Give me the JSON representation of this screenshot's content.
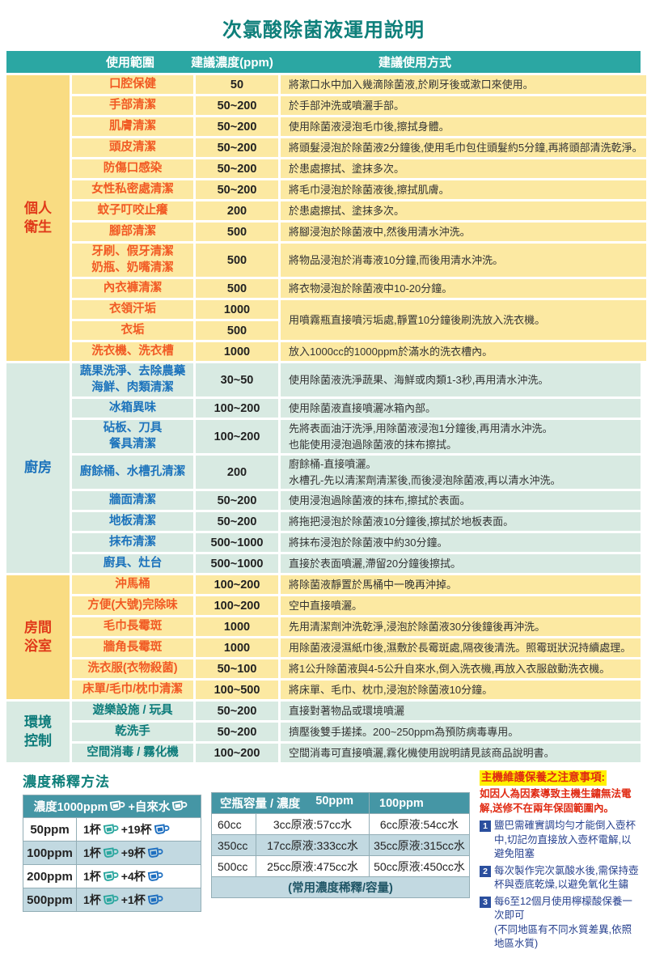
{
  "title": "次氯酸除菌液運用說明",
  "colors": {
    "title_teal": "#0e7f7a",
    "header_teal": "#2ba7a3",
    "yellow_category_bg": "#f9dc82",
    "yellow_cell_bg": "#fce9a2",
    "red_category_text": "#e03a1a",
    "orange_label_text": "#f15a24",
    "blue_label_text": "#1c73bc",
    "teal_label_text": "#0c7b7a",
    "green_cell_bg": "#d8eae2",
    "bottom_header_bg": "#4596a5",
    "alt_row_bg": "#c2d9e1",
    "note_red": "#e02a12",
    "note_navy": "#27418f",
    "badge_blue": "#2b4f9e",
    "highlight_yellow": "#fff100",
    "original_cup_teal": "#2ba79f",
    "water_cup_blue": "#1e6fc0"
  },
  "main_table": {
    "headers": {
      "scope": "使用範圍",
      "ppm": "建議濃度(ppm)",
      "method": "建議使用方式"
    },
    "sections": [
      {
        "category_lines": [
          "個人",
          "衛生"
        ],
        "theme": "theme-yellow",
        "rows": [
          {
            "scope": [
              "口腔保健"
            ],
            "ppm": "50",
            "method": [
              "將漱口水中加入幾滴除菌液,於刷牙後或漱口來使用。"
            ]
          },
          {
            "scope": [
              "手部清潔"
            ],
            "ppm": "50~200",
            "method": [
              "於手部沖洗或噴灑手部。"
            ]
          },
          {
            "scope": [
              "肌膚清潔"
            ],
            "ppm": "50~200",
            "method": [
              "使用除菌液浸泡毛巾後,擦拭身體。"
            ]
          },
          {
            "scope": [
              "頭皮清潔"
            ],
            "ppm": "50~200",
            "method": [
              "將頭髮浸泡於除菌液2分鐘後,使用毛巾包住頭髮約5分鐘,再將頭部清洗乾淨。"
            ]
          },
          {
            "scope": [
              "防傷口感染"
            ],
            "ppm": "50~200",
            "method": [
              "於患處擦拭、塗抹多次。"
            ]
          },
          {
            "scope": [
              "女性私密處清潔"
            ],
            "ppm": "50~200",
            "method": [
              "將毛巾浸泡於除菌液後,擦拭肌膚。"
            ]
          },
          {
            "scope": [
              "蚊子叮咬止癢"
            ],
            "ppm": "200",
            "method": [
              "於患處擦拭、塗抹多次。"
            ]
          },
          {
            "scope": [
              "腳部清潔"
            ],
            "ppm": "500",
            "method": [
              "將腳浸泡於除菌液中,然後用清水沖洗。"
            ]
          },
          {
            "scope": [
              "牙刷、假牙清潔",
              "奶瓶、奶嘴清潔"
            ],
            "ppm": "500",
            "method": [
              "將物品浸泡於消毒液10分鐘,而後用清水沖洗。"
            ]
          },
          {
            "scope": [
              "內衣褲清潔"
            ],
            "ppm": "500",
            "method": [
              "將衣物浸泡於除菌液中10-20分鐘。"
            ]
          },
          {
            "scope": [
              "衣領汗垢"
            ],
            "ppm": "1000",
            "method": [
              "用噴霧瓶直接噴污垢處,靜置10分鐘後刷洗放入洗衣機。"
            ],
            "method_rowspan": 2
          },
          {
            "scope": [
              "衣垢"
            ],
            "ppm": "500",
            "method": null
          },
          {
            "scope": [
              "洗衣機、洗衣槽"
            ],
            "ppm": "1000",
            "method": [
              "放入1000cc的1000ppm於滿水的洗衣槽內。"
            ]
          }
        ]
      },
      {
        "category_lines": [
          "廚房"
        ],
        "theme": "theme-blue",
        "rows": [
          {
            "scope": [
              "蔬果洗淨、去除農藥",
              "海鮮、肉類清潔"
            ],
            "ppm": "30~50",
            "method": [
              "使用除菌液洗淨蔬果、海鮮或肉類1-3秒,再用清水沖洗。"
            ]
          },
          {
            "scope": [
              "冰箱異味"
            ],
            "ppm": "100~200",
            "method": [
              "使用除菌液直接噴灑冰箱內部。"
            ]
          },
          {
            "scope": [
              "砧板、刀具",
              "餐具清潔"
            ],
            "ppm": "100~200",
            "method": [
              "先將表面油汙洗淨,用除菌液浸泡1分鐘後,再用清水沖洗。",
              "也能使用浸泡過除菌液的抹布擦拭。"
            ]
          },
          {
            "scope": [
              "廚餘桶、水槽孔清潔"
            ],
            "ppm": "200",
            "method": [
              "廚餘桶-直接噴灑。",
              "水槽孔-先以清潔劑清潔後,而後浸泡除菌液,再以清水沖洗。"
            ]
          },
          {
            "scope": [
              "牆面清潔"
            ],
            "ppm": "50~200",
            "method": [
              "使用浸泡過除菌液的抹布,擦拭於表面。"
            ]
          },
          {
            "scope": [
              "地板清潔"
            ],
            "ppm": "50~200",
            "method": [
              "將拖把浸泡於除菌液10分鐘後,擦拭於地板表面。"
            ]
          },
          {
            "scope": [
              "抹布清潔"
            ],
            "ppm": "500~1000",
            "method": [
              "將抹布浸泡於除菌液中約30分鐘。"
            ]
          },
          {
            "scope": [
              "廚具、灶台"
            ],
            "ppm": "500~1000",
            "method": [
              "直接於表面噴灑,滯留20分鐘後擦拭。"
            ]
          }
        ]
      },
      {
        "category_lines": [
          "房間",
          "浴室"
        ],
        "theme": "theme-yellow",
        "rows": [
          {
            "scope": [
              "沖馬桶"
            ],
            "ppm": "100~200",
            "method": [
              "將除菌液靜置於馬桶中一晚再沖掉。"
            ]
          },
          {
            "scope": [
              "方便(大號)完除味"
            ],
            "ppm": "100~200",
            "method": [
              "空中直接噴灑。"
            ]
          },
          {
            "scope": [
              "毛巾長霉斑"
            ],
            "ppm": "1000",
            "method": [
              "先用清潔劑沖洗乾淨,浸泡於除菌液30分後鐘後再沖洗。"
            ]
          },
          {
            "scope": [
              "牆角長霉斑"
            ],
            "ppm": "1000",
            "method": [
              "用除菌液浸濕紙巾後,濕敷於長霉斑處,隔夜後清洗。照霉斑狀況持續處理。"
            ]
          },
          {
            "scope": [
              "洗衣服(衣物殺菌)"
            ],
            "ppm": "50~100",
            "method": [
              "將1公升除菌液與4-5公升自來水,倒入洗衣機,再放入衣服啟動洗衣機。"
            ]
          },
          {
            "scope": [
              "床單/毛巾/枕巾清潔"
            ],
            "ppm": "100~500",
            "method": [
              "將床單、毛巾、枕巾,浸泡於除菌液10分鐘。"
            ]
          }
        ]
      },
      {
        "category_lines": [
          "環境",
          "控制"
        ],
        "theme": "theme-teal",
        "rows": [
          {
            "scope": [
              "遊樂設施 / 玩具"
            ],
            "ppm": "50~200",
            "method": [
              "直接對著物品或環境噴灑"
            ]
          },
          {
            "scope": [
              "乾洗手"
            ],
            "ppm": "50~200",
            "method": [
              "擠壓後雙手搓揉。200~250ppm為預防病毒專用。"
            ]
          },
          {
            "scope": [
              "空間消毒 / 霧化機"
            ],
            "ppm": "100~200",
            "method": [
              "空間消毒可直接噴灑,霧化機使用說明請見該商品說明書。"
            ]
          }
        ]
      }
    ]
  },
  "dilution": {
    "heading": "濃度稀釋方法",
    "header_original": "濃度1000ppm",
    "header_water": "+自來水",
    "original_icon": "cup-teal",
    "water_icon": "cup-blue",
    "rows": [
      {
        "target": "50ppm",
        "original": "1杯",
        "water": "+19杯"
      },
      {
        "target": "100ppm",
        "original": "1杯",
        "water": "+9杯"
      },
      {
        "target": "200ppm",
        "original": "1杯",
        "water": "+4杯"
      },
      {
        "target": "500ppm",
        "original": "1杯",
        "water": "+1杯"
      }
    ]
  },
  "bottle_table": {
    "header_capacity": "空瓶容量 / 濃度",
    "header_50": "50ppm",
    "header_100": "100ppm",
    "rows": [
      {
        "capacity": "60cc",
        "c50": "3cc原液:57cc水",
        "c100": "6cc原液:54cc水"
      },
      {
        "capacity": "350cc",
        "c50": "17cc原液:333cc水",
        "c100": "35cc原液:315cc水"
      },
      {
        "capacity": "500cc",
        "c50": "25cc原液:475cc水",
        "c100": "50cc原液:450cc水"
      }
    ],
    "footer": "(常用濃度稀釋/容量)"
  },
  "notes": {
    "heading": "主機維護保養之注意事項:",
    "warning_prefix": "如因",
    "warning_bold": "人為因素",
    "warning_suffix": "導致主機生鏽無法電解,送修不在兩年保固範圍內。",
    "items": [
      {
        "num": "1",
        "text": "鹽巴需確實調均勻才能倒入壺杯中,切記勿直接放入壺杯電解,以避免阻塞",
        "sub": ""
      },
      {
        "num": "2",
        "text": "每次製作完次氯酸水後,需保持壺杯與壺底乾燥,以避免氧化生鏽",
        "sub": ""
      },
      {
        "num": "3",
        "text": "每6至12個月使用檸檬酸保養一次即可",
        "sub": "(不同地區有不同水質差異,依照地區水質)"
      }
    ]
  }
}
